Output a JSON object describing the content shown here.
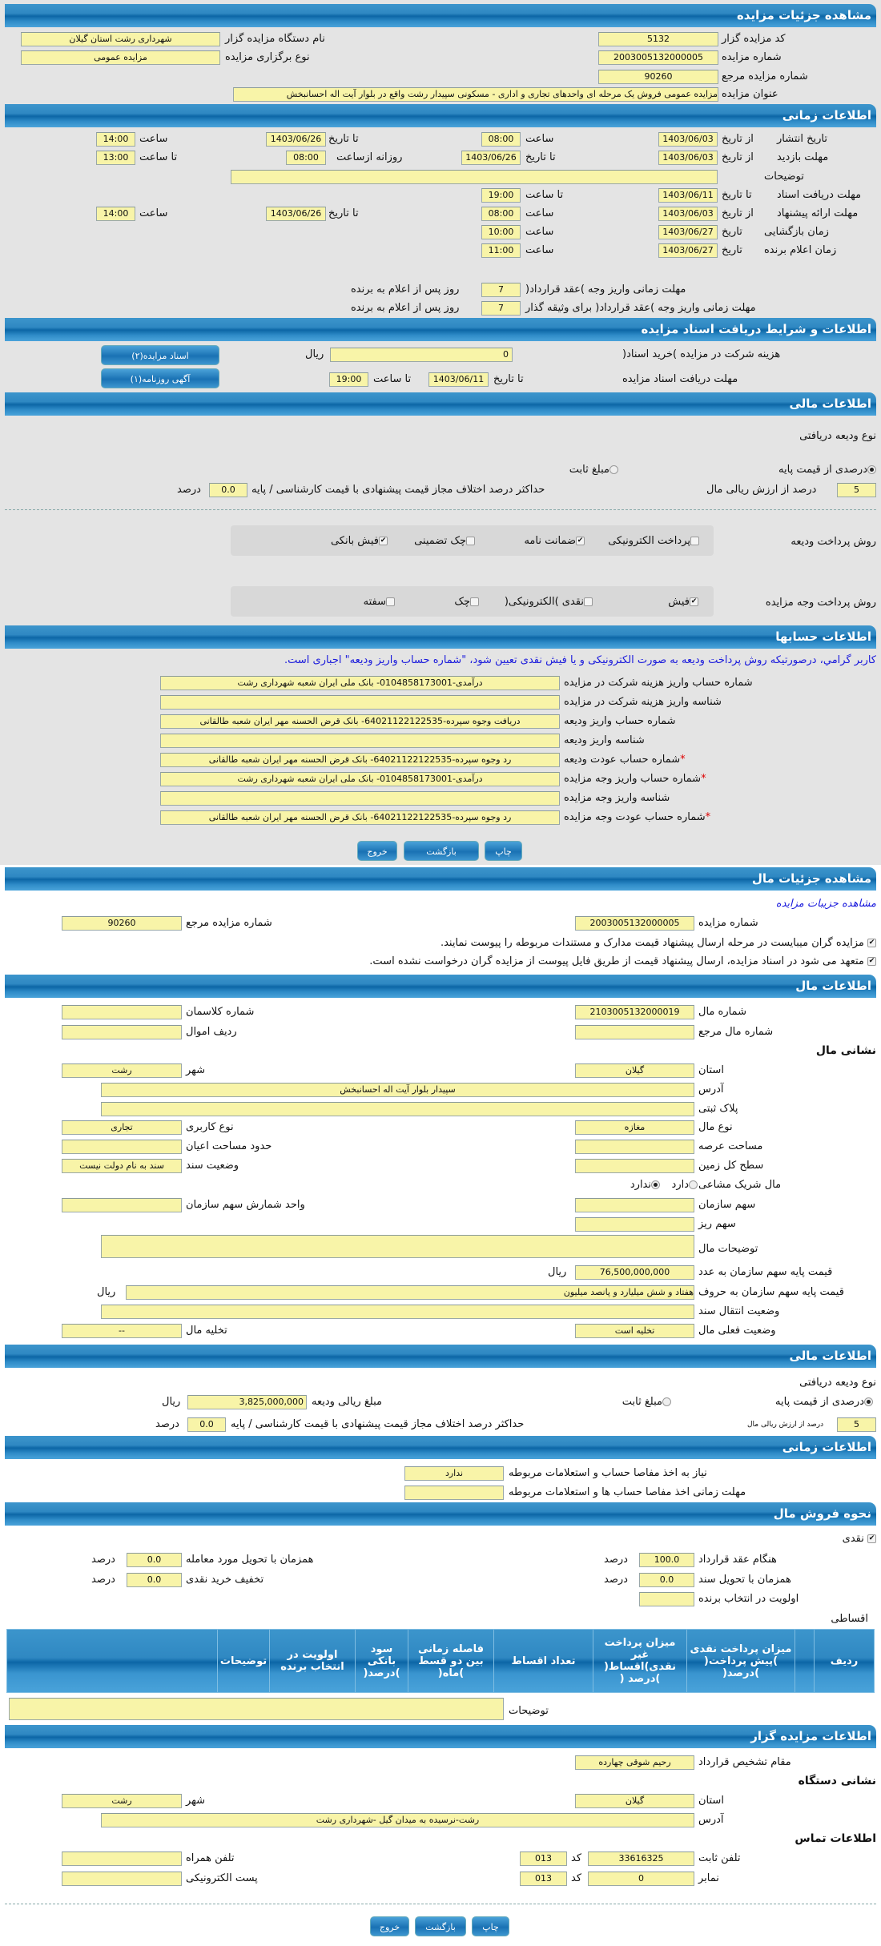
{
  "colors": {
    "header": "#0c66a6",
    "input_bg": "#f8f4a8",
    "link": "#1a1adc",
    "page_bg": "#e4e4e4"
  },
  "auction": {
    "title": "مشاهده جزئیات مزایده",
    "code_label": "کد مزایده گزار",
    "code": "5132",
    "org_label": "نام دستگاه مزایده گزار",
    "org": "شهرداری رشت استان گیلان",
    "number_label": "شماره مزایده",
    "number": "2003005132000005",
    "type_label": "نوع برگزاری مزایده",
    "type": "مزایده عمومی",
    "ref_label": "شماره مزایده مرجع",
    "ref": "90260",
    "subject_label": "عنوان مزایده",
    "subject": "مزایده عمومی فروش یک مرحله ای واحدهای تجاری و اداری - مسکونی سپیدار رشت واقع در بلوار آیت اله احسانبخش"
  },
  "timing": {
    "title": "اطلاعات زمانی",
    "from_date": "از تاریخ",
    "to_date": "تا تاریخ",
    "date": "تاریخ",
    "hour": "ساعت",
    "to_hour": "تا ساعت",
    "daily_from": "روزانه ازساعت",
    "publish_label": "تاریخ انتشار",
    "publish_from": "1403/06/03",
    "publish_from_time": "08:00",
    "publish_to": "1403/06/26",
    "publish_to_time": "14:00",
    "visit_label": "مهلت بازدید",
    "visit_from": "1403/06/03",
    "visit_to": "1403/06/26",
    "visit_daily_from": "08:00",
    "visit_daily_to": "13:00",
    "notes_label": "توضیحات",
    "notes": "",
    "docs_label": "مهلت دریافت اسناد",
    "docs_to": "1403/06/11",
    "docs_to_time": "19:00",
    "offer_label": "مهلت ارائه پیشنهاد",
    "offer_from": "1403/06/03",
    "offer_from_time": "08:00",
    "offer_to": "1403/06/26",
    "offer_to_time": "14:00",
    "opening_label": "زمان بازگشایی",
    "opening_date": "1403/06/27",
    "opening_time": "10:00",
    "winner_label": "زمان اعلام برنده",
    "winner_date": "1403/06/27",
    "winner_time": "11:00",
    "pay1_label": "مهلت زمانی واریز وجه )عقد قرارداد(",
    "pay1_days": "7",
    "pay2_label": "مهلت زمانی واریز وجه )عقد قرارداد( برای وثیقه گذار",
    "pay2_days": "7",
    "days_suffix": "روز پس از اعلام به برنده"
  },
  "docs": {
    "title": "اطلاعات و شرایط دریافت اسناد مزایده",
    "fee_label": "هزینه شرکت در مزایده )خرید اسناد(",
    "fee": "0",
    "rial": "ریال",
    "deadline_label": "مهلت دریافت اسناد مزایده",
    "to_date": "تا تاریخ",
    "date": "1403/06/11",
    "to_hour": "تا ساعت",
    "time": "19:00",
    "btn_docs": "اسناد مزایده(۲)",
    "btn_ad": "آگهی روزنامه(۱)"
  },
  "finance": {
    "title": "اطلاعات مالی",
    "deposit_type_label": "نوع ودیعه دریافتی",
    "opt_percent": "درصدی از قیمت پایه",
    "opt_percent_checked": true,
    "opt_fixed": "مبلغ ثابت",
    "opt_fixed_checked": false,
    "percent": "5",
    "percent_suffix": "درصد از ارزش ریالی مال",
    "max_diff_label": "حداکثر درصد اختلاف مجاز قیمت پیشنهادی با قیمت کارشناسی / پایه",
    "max_diff": "0.0",
    "percent_word": "درصد",
    "deposit_method_label": "روش پرداخت ودیعه",
    "deposit_methods": [
      {
        "label": "پرداخت الکترونیکی",
        "checked": false
      },
      {
        "label": "ضمانت نامه",
        "checked": true
      },
      {
        "label": "چک تضمینی",
        "checked": false
      },
      {
        "label": "فیش بانکی",
        "checked": true
      }
    ],
    "payment_method_label": "روش پرداخت وجه مزایده",
    "payment_methods": [
      {
        "label": "فیش",
        "checked": true
      },
      {
        "label": "نقدی )الکترونیکی(",
        "checked": false
      },
      {
        "label": "چک",
        "checked": false
      },
      {
        "label": "سفته",
        "checked": false
      }
    ]
  },
  "accounts": {
    "title": "اطلاعات حسابها",
    "note": "کاربر گرامي، درصورتیکه روش پرداخت ودیعه به صورت الکترونیکی و یا فیش نقدی تعیین شود، \"شماره حساب واریز ودیعه\" اجباری است.",
    "rows": [
      {
        "label": "شماره حساب واریز هزینه شرکت در مزایده",
        "value": "درآمدی-0104858173001- بانک ملی ایران شعبه شهرداری رشت",
        "required": false
      },
      {
        "label": "شناسه واریز هزینه شرکت در مزایده",
        "value": "",
        "required": false
      },
      {
        "label": "شماره حساب واریز ودیعه",
        "value": "دریافت وجوه سپرده-64021122122535- بانک قرض الحسنه مهر ایران شعبه طالقانی",
        "required": false
      },
      {
        "label": "شناسه واریز ودیعه",
        "value": "",
        "required": false
      },
      {
        "label": "شماره حساب عودت ودیعه",
        "value": "رد وجوه سپرده-64021122122535- بانک قرض الحسنه مهر ایران شعبه طالقانی",
        "required": true
      },
      {
        "label": "شماره حساب واریز وجه مزایده",
        "value": "درآمدی-0104858173001- بانک ملی ایران شعبه شهرداری رشت",
        "required": true
      },
      {
        "label": "شناسه واریز وجه مزایده",
        "value": "",
        "required": false
      },
      {
        "label": "شماره حساب عودت وجه مزایده",
        "value": "رد وجوه سپرده-64021122122535- بانک قرض الحسنه مهر ایران شعبه طالقانی",
        "required": true
      }
    ],
    "required_mark": "*"
  },
  "buttons": {
    "print": "چاپ",
    "back": "بازگشت",
    "exit": "خروج"
  },
  "item": {
    "title": "مشاهده جزئیات مال",
    "link": "مشاهده جزیبات مزایده",
    "number_label": "شماره مزایده",
    "number": "2003005132000005",
    "ref_label": "شماره مزایده مرجع",
    "ref": "90260",
    "check1": "مزایده گران میبایست در مرحله ارسال پیشنهاد قیمت مدارک و مستندات مربوطه را پیوست نمایند.",
    "check2": "متعهد می شود در اسناد مزایده، ارسال پیشنهاد قیمت از طریق فایل پیوست از مزایده گران درخواست نشده است."
  },
  "item_info": {
    "title": "اطلاعات مال",
    "item_no_label": "شماره مال",
    "item_no": "2103005132000019",
    "class_label": "شماره کلاسمان",
    "class_no": "",
    "item_ref_label": "شماره مال مرجع",
    "item_ref": "",
    "row_label": "ردیف اموال",
    "row": "",
    "address_heading": "نشانی مال",
    "province_label": "استان",
    "province": "گیلان",
    "city_label": "شهر",
    "city": "رشت",
    "address_label": "آدرس",
    "address": "سپیدار بلوار آیت اله احسانبخش",
    "plaque_label": "پلاک ثبتی",
    "plaque": "",
    "kind_label": "نوع مال",
    "kind": "مغازه",
    "usage_label": "نوع کاربری",
    "usage": "تجاری",
    "land_area_label": "مساحت عرصه",
    "land_area": "",
    "building_area_label": "حدود مساحت اعیان",
    "building_area": "",
    "total_land_label": "سطح کل زمین",
    "total_land": "",
    "deed_label": "وضعیت سند",
    "deed": "سند به نام دولت نیست",
    "shared_label": "مال شریک مشاعی",
    "shared_yes": "دارد",
    "shared_no": "ندارد",
    "shared": false,
    "share_label": "سهم سازمان",
    "share": "",
    "share_unit_label": "واحد شمارش سهم سازمان",
    "share_unit": "",
    "share_detail_label": "سهم ریز",
    "share_detail": "",
    "desc_label": "توضیحات مال",
    "desc": "",
    "price_num_label": "قیمت پایه سهم سازمان به عدد",
    "price_num": "76,500,000,000",
    "price_text_label": "قیمت پایه سهم سازمان به حروف",
    "price_text": "هفتاد و شش میلیارد و پانصد میلیون",
    "rial": "ریال",
    "transfer_label": "وضعیت انتقال سند",
    "transfer": "",
    "status_label": "وضعیت فعلی مال",
    "status": "تخلیه است",
    "evacuation_label": "تخلیه مال",
    "evacuation": "--"
  },
  "item_finance": {
    "title": "اطلاعات مالی",
    "deposit_type_label": "نوع ودیعه دریافتی",
    "opt_percent": "درصدی از قیمت پایه",
    "opt_fixed": "مبلغ ثابت",
    "deposit_amount_label": "مبلغ ریالی ودیعه",
    "deposit_amount": "3,825,000,000",
    "rial": "ریال",
    "percent": "5",
    "percent_suffix": "درصد از ارزش ریالی مال",
    "max_diff_label": "حداکثر درصد اختلاف مجاز قیمت پیشنهادی با قیمت کارشناسی / پایه",
    "max_diff": "0.0",
    "percent_word": "درصد"
  },
  "item_timing": {
    "title": "اطلاعات زمانی",
    "clearance_label": "نیاز به اخذ مفاصا حساب و استعلامات مربوطه",
    "clearance": "ندارد",
    "clearance_deadline_label": "مهلت زمانی اخذ مفاصا حساب ها و استعلامات مربوطه",
    "clearance_deadline": ""
  },
  "sale": {
    "title": "نحوه فروش مال",
    "cash_label": "نقدی",
    "cash_checked": true,
    "contract_label": "هنگام عقد قرارداد",
    "contract": "100.0",
    "deed_delivery_label": "همزمان با تحویل سند",
    "deed_delivery": "0.0",
    "item_delivery_label": "همزمان با تحویل مورد معامله",
    "item_delivery": "0.0",
    "discount_label": "تخفیف خرید نقدی",
    "discount": "0.0",
    "priority_label": "اولویت در انتخاب برنده",
    "priority": "",
    "percent_word": "درصد",
    "installment_label": "اقساطی",
    "table_headers": [
      "ردیف",
      "",
      "میزان پرداخت نقدی )پیش پرداخت( )درصد(",
      "میزان پرداخت غیر نقدی)اقساط( )درصد (",
      "تعداد اقساط",
      "فاصله زمانی بین دو قسط )ماه(",
      "سود بانکی )درصد(",
      "اولویت در انتخاب برنده",
      "توضیحات",
      ""
    ],
    "notes_label": "توضیحات",
    "notes": ""
  },
  "auctioneer": {
    "title": "اطلاعات مزایده گزار",
    "authority_label": "مقام تشخیص قرارداد",
    "authority": "رحیم شوقی چهارده",
    "org_address_heading": "نشانی دستگاه",
    "province_label": "استان",
    "province": "گیلان",
    "city_label": "شهر",
    "city": "رشت",
    "address_label": "آدرس",
    "address": "رشت-نرسیده به میدان گیل -شهرداری رشت",
    "contact_heading": "اطلاعات تماس",
    "phone_label": "تلفن ثابت",
    "phone": "33616325",
    "code_label": "کد",
    "phone_code": "013",
    "mobile_label": "تلفن همراه",
    "mobile": "",
    "fax_label": "نمابر",
    "fax": "0",
    "fax_code": "013",
    "email_label": "پست الکترونیکی",
    "email": ""
  }
}
